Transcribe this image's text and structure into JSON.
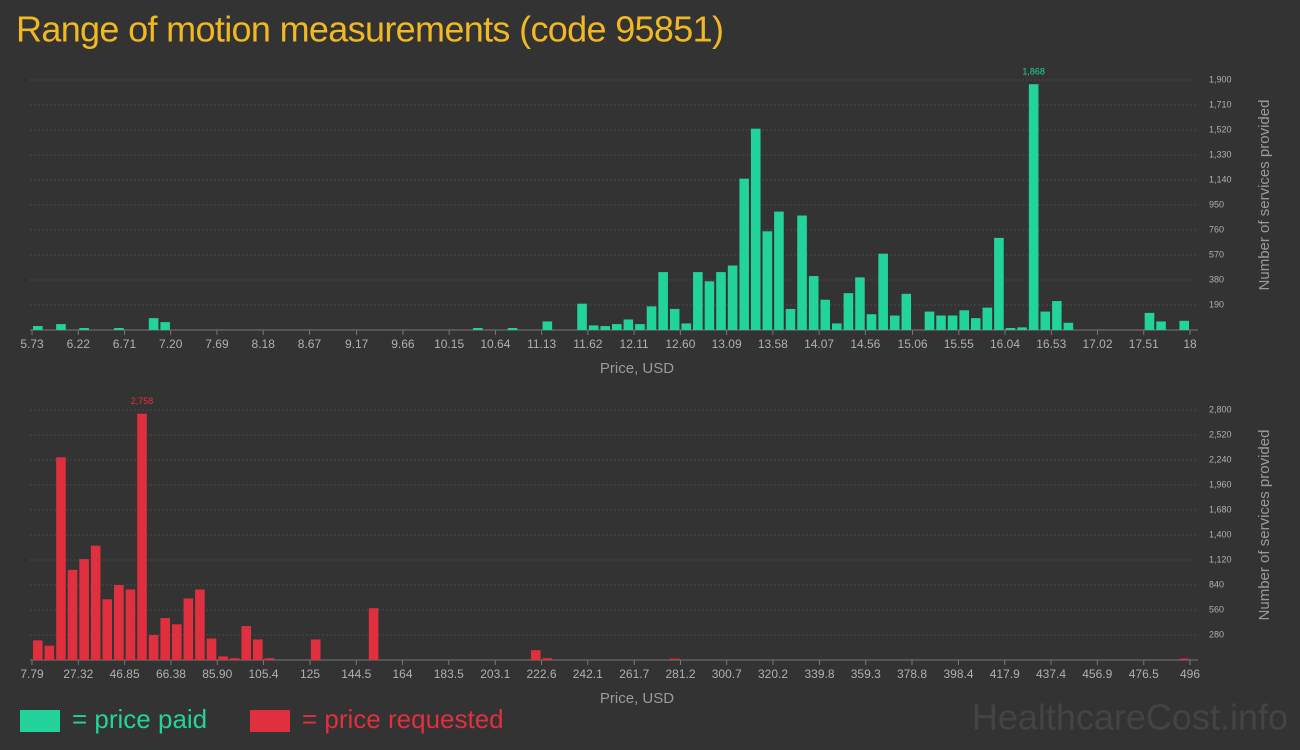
{
  "title": "Range of motion measurements (code 95851)",
  "watermark": "HealthcareCost.info",
  "chart_data": [
    {
      "type": "histogram",
      "x_label": "Price, USD",
      "y_label": "Number of services provided",
      "xlim": [
        5.73,
        18
      ],
      "xticks": [
        5.73,
        6.22,
        6.71,
        {
          "value": 7.2,
          "label": "7.20"
        },
        7.69,
        8.18,
        8.67,
        9.17,
        9.66,
        10.15,
        10.64,
        11.13,
        11.62,
        12.11,
        {
          "value": 12.6,
          "label": "12.60"
        },
        13.09,
        13.58,
        14.07,
        14.56,
        15.06,
        15.55,
        16.04,
        16.53,
        17.02,
        17.51,
        18
      ],
      "ylim": [
        0,
        1900
      ],
      "yticks": [
        190,
        380,
        570,
        760,
        950,
        {
          "value": 1140,
          "label": "1,140"
        },
        {
          "value": 1330,
          "label": "1,330"
        },
        {
          "value": 1520,
          "label": "1,520"
        },
        {
          "value": 1710,
          "label": "1,710"
        },
        {
          "value": 1900,
          "label": "1,900"
        }
      ],
      "grid": true,
      "bins": [
        5.73,
        5.853,
        5.975,
        6.098,
        6.221,
        6.344,
        6.466,
        6.589,
        6.712,
        6.834,
        6.957,
        7.08,
        7.202,
        7.325,
        7.448,
        7.571,
        7.693,
        7.816,
        7.939,
        8.061,
        8.184,
        8.307,
        8.429,
        8.552,
        8.675,
        8.798,
        8.92,
        9.043,
        9.166,
        9.288,
        9.411,
        9.534,
        9.656,
        9.779,
        9.902,
        10.025,
        10.147,
        10.27,
        10.393,
        10.515,
        10.638,
        10.761,
        10.883,
        11.006,
        11.129,
        11.252,
        11.374,
        11.497,
        11.62,
        11.742,
        11.865,
        11.988,
        12.11,
        12.233,
        12.356,
        12.479,
        12.601,
        12.724,
        12.847,
        12.969,
        13.092,
        13.215,
        13.337,
        13.46,
        13.583,
        13.706,
        13.828,
        13.951,
        14.074,
        14.196,
        14.319,
        14.442,
        14.564,
        14.687,
        14.81,
        14.933,
        15.055,
        15.178,
        15.301,
        15.423,
        15.546,
        15.669,
        15.791,
        15.914,
        16.037,
        16.16,
        16.282,
        16.405,
        16.528,
        16.65,
        16.773,
        16.896,
        17.018,
        17.141,
        17.264,
        17.387,
        17.509,
        17.632,
        17.755,
        17.877,
        18.0
      ],
      "series": [
        {
          "name": "= price paid",
          "color": "#22d39b",
          "values": [
            30,
            0,
            45,
            0,
            15,
            0,
            0,
            15,
            0,
            0,
            90,
            60,
            0,
            0,
            0,
            0,
            0,
            0,
            0,
            0,
            0,
            0,
            0,
            0,
            0,
            0,
            0,
            0,
            0,
            0,
            0,
            0,
            0,
            0,
            0,
            0,
            0,
            0,
            15,
            0,
            0,
            15,
            0,
            0,
            65,
            0,
            0,
            200,
            35,
            30,
            45,
            80,
            45,
            180,
            440,
            160,
            50,
            440,
            370,
            440,
            490,
            1150,
            1530,
            750,
            900,
            160,
            870,
            410,
            230,
            50,
            280,
            400,
            120,
            580,
            110,
            275,
            0,
            140,
            110,
            110,
            150,
            90,
            170,
            700,
            15,
            20,
            1868,
            140,
            220,
            55,
            0,
            0,
            0,
            0,
            0,
            0,
            130,
            65,
            0,
            70
          ],
          "value_labels": [
            null,
            null,
            null,
            null,
            null,
            null,
            null,
            null,
            null,
            null,
            null,
            null,
            null,
            null,
            null,
            null,
            null,
            null,
            null,
            null,
            null,
            null,
            null,
            null,
            null,
            null,
            null,
            null,
            null,
            null,
            null,
            null,
            null,
            null,
            null,
            null,
            null,
            null,
            null,
            null,
            null,
            null,
            null,
            null,
            null,
            null,
            null,
            null,
            null,
            null,
            null,
            null,
            null,
            null,
            null,
            null,
            null,
            null,
            null,
            null,
            null,
            null,
            null,
            null,
            null,
            null,
            null,
            null,
            null,
            null,
            null,
            null,
            null,
            null,
            null,
            null,
            null,
            null,
            null,
            null,
            null,
            null,
            null,
            null,
            null,
            null,
            "1,868",
            null,
            null,
            null,
            null,
            null,
            null,
            null,
            null,
            null,
            null,
            null,
            null,
            null
          ]
        }
      ]
    },
    {
      "type": "histogram",
      "x_label": "Price, USD",
      "y_label": "Number of services provided",
      "xlim": [
        7.79,
        496
      ],
      "xticks": [
        7.79,
        27.32,
        46.85,
        66.38,
        {
          "value": 85.9,
          "label": "85.90"
        },
        105.4,
        125,
        144.5,
        164,
        183.5,
        203.1,
        222.6,
        242.1,
        261.7,
        281.2,
        300.7,
        320.2,
        339.8,
        359.3,
        378.8,
        398.4,
        417.9,
        437.4,
        456.9,
        476.5,
        496
      ],
      "ylim": [
        0,
        2800
      ],
      "yticks": [
        280,
        560,
        840,
        {
          "value": 1120,
          "label": "1,120"
        },
        {
          "value": 1400,
          "label": "1,400"
        },
        {
          "value": 1680,
          "label": "1,680"
        },
        {
          "value": 1960,
          "label": "1,960"
        },
        {
          "value": 2240,
          "label": "2,240"
        },
        {
          "value": 2520,
          "label": "2,520"
        },
        {
          "value": 2800,
          "label": "2,800"
        }
      ],
      "grid": true,
      "bins": [
        7.79,
        12.67,
        17.55,
        22.44,
        27.32,
        32.2,
        37.08,
        41.96,
        46.85,
        51.73,
        56.61,
        61.49,
        66.38,
        71.26,
        76.14,
        81.02,
        85.9,
        90.79,
        95.67,
        100.55,
        105.43,
        110.31,
        115.2,
        120.08,
        124.96,
        129.84,
        134.72,
        139.61,
        144.49,
        149.37,
        154.25,
        159.14,
        164.02,
        168.9,
        173.78,
        178.66,
        183.55,
        188.43,
        193.31,
        198.19,
        203.07,
        207.96,
        212.84,
        217.72,
        222.6,
        227.48,
        232.37,
        237.25,
        242.13,
        247.01,
        251.9,
        256.78,
        261.66,
        266.54,
        271.42,
        276.31,
        281.19,
        286.07,
        290.95,
        295.83,
        300.72,
        305.6,
        310.48,
        315.36,
        320.24,
        325.13,
        330.01,
        334.89,
        339.77,
        344.66,
        349.54,
        354.42,
        359.3,
        364.18,
        369.07,
        373.95,
        378.83,
        383.71,
        388.6,
        393.48,
        398.36,
        403.24,
        408.12,
        413.01,
        417.89,
        422.77,
        427.65,
        432.53,
        437.42,
        442.3,
        447.18,
        452.06,
        456.95,
        461.83,
        466.71,
        471.59,
        476.47,
        481.36,
        486.24,
        491.12,
        496.0
      ],
      "series": [
        {
          "name": "= price requested",
          "color": "#e0303f",
          "values": [
            220,
            160,
            2270,
            1010,
            1130,
            1280,
            680,
            840,
            790,
            2758,
            280,
            470,
            400,
            690,
            790,
            240,
            40,
            20,
            380,
            230,
            20,
            0,
            0,
            0,
            230,
            0,
            0,
            0,
            0,
            580,
            0,
            0,
            0,
            0,
            0,
            0,
            0,
            0,
            0,
            0,
            0,
            0,
            0,
            110,
            20,
            0,
            0,
            0,
            0,
            0,
            0,
            0,
            0,
            0,
            0,
            15,
            0,
            0,
            0,
            0,
            0,
            0,
            0,
            0,
            0,
            0,
            0,
            0,
            0,
            0,
            0,
            0,
            0,
            0,
            0,
            0,
            0,
            0,
            0,
            0,
            0,
            0,
            0,
            0,
            0,
            0,
            0,
            0,
            0,
            0,
            0,
            0,
            0,
            0,
            0,
            0,
            0,
            0,
            0,
            15
          ],
          "value_labels": [
            null,
            null,
            null,
            null,
            null,
            null,
            null,
            null,
            null,
            "2,758",
            null,
            null,
            null,
            null,
            null,
            null,
            null,
            null,
            null,
            null,
            null,
            null,
            null,
            null,
            null,
            null,
            null,
            null,
            null,
            null,
            null,
            null,
            null,
            null,
            null,
            null,
            null,
            null,
            null,
            null,
            null,
            null,
            null,
            null,
            null,
            null,
            null,
            null,
            null,
            null,
            null,
            null,
            null,
            null,
            null,
            null,
            null,
            null,
            null,
            null,
            null,
            null,
            null,
            null,
            null,
            null,
            null,
            null,
            null,
            null,
            null,
            null,
            null,
            null,
            null,
            null,
            null,
            null,
            null,
            null,
            null,
            null,
            null,
            null,
            null,
            null,
            null,
            null,
            null,
            null,
            null,
            null,
            null,
            null,
            null,
            null,
            null,
            null,
            null,
            null
          ]
        }
      ]
    }
  ]
}
